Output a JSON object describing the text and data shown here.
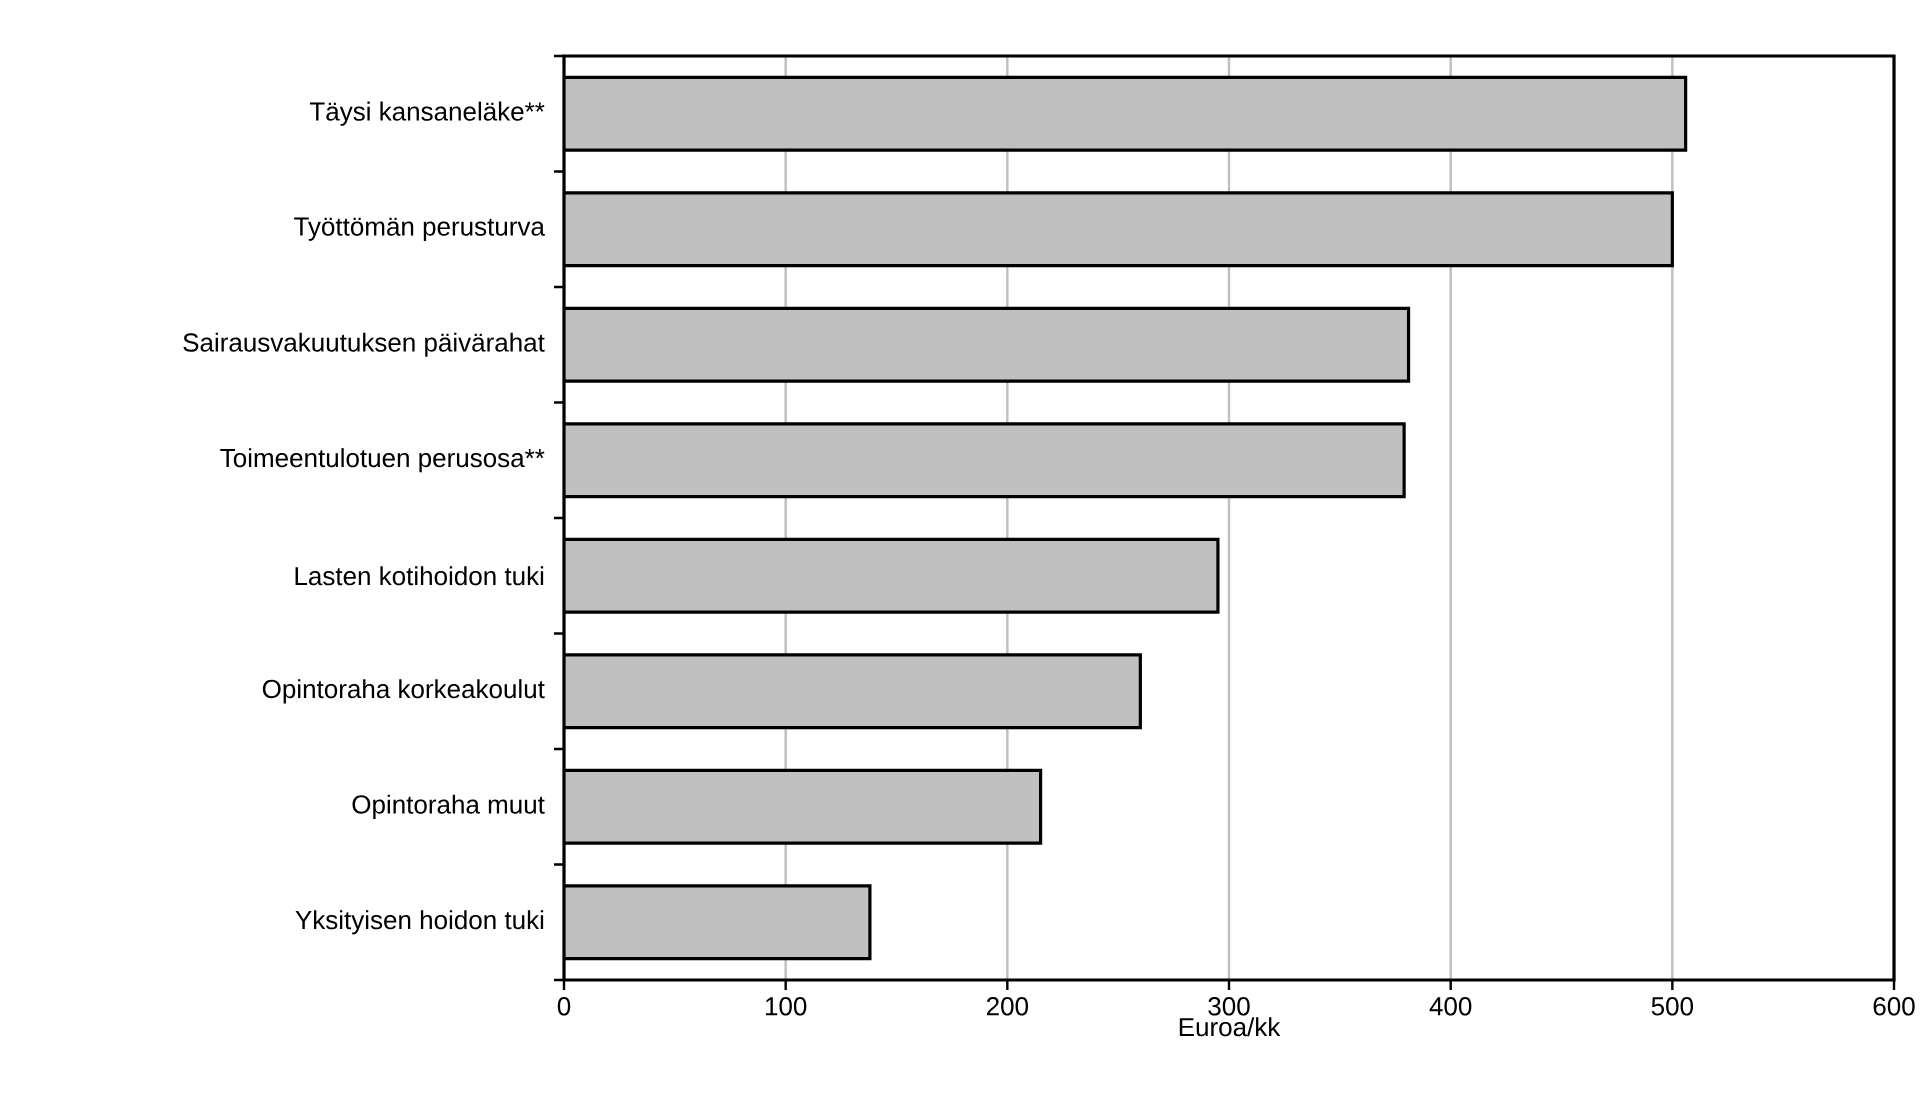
{
  "chart_data": {
    "type": "bar",
    "orientation": "horizontal",
    "categories": [
      "Täysi kansaneläke**",
      "Työttömän perusturva",
      "Sairausvakuutuksen päivärahat",
      "Toimeentulotuen perusosa**",
      "Lasten kotihoidon tuki",
      "Opintoraha korkeakoulut",
      "Opintoraha muut",
      "Yksityisen hoidon tuki"
    ],
    "values": [
      506,
      500,
      381,
      379,
      295,
      260,
      215,
      138
    ],
    "color": "#c0c0c0",
    "xlim": [
      0,
      600
    ],
    "xticks": [
      0,
      100,
      200,
      300,
      400,
      500,
      600
    ],
    "xlabel": "Euroa/kk",
    "grid": "x"
  }
}
